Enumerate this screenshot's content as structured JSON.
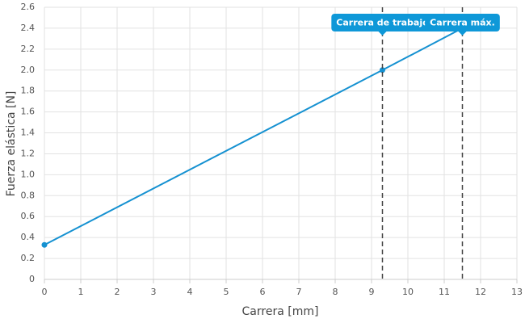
{
  "chart_data": {
    "type": "line",
    "x_label": "Carrera [mm]",
    "y_label": "Fuerza elástica [N]",
    "x": [
      0,
      9.3,
      11.5
    ],
    "series": [
      {
        "color": "#1591d1",
        "values": [
          0.33,
          2.0,
          2.4
        ]
      }
    ],
    "xlim": [
      0,
      13
    ],
    "xticks": [
      0,
      1,
      2,
      3,
      4,
      5,
      6,
      7,
      8,
      9,
      10,
      11,
      12,
      13
    ],
    "ylim": [
      0,
      2.6
    ],
    "yticks": [
      0,
      0.2,
      0.4,
      0.6,
      0.8,
      {
        "value": 1,
        "label": "1.0"
      },
      1.2,
      1.4,
      1.6,
      1.8,
      {
        "value": 2,
        "label": "2.0"
      },
      2.2,
      2.4,
      2.6
    ],
    "grid": true,
    "vlines": [
      {
        "x": 9.3,
        "label": "Carrera de trabajo"
      },
      {
        "x": 11.5,
        "label": "Carrera máx."
      }
    ],
    "annotation_color": "#0e98d8"
  }
}
